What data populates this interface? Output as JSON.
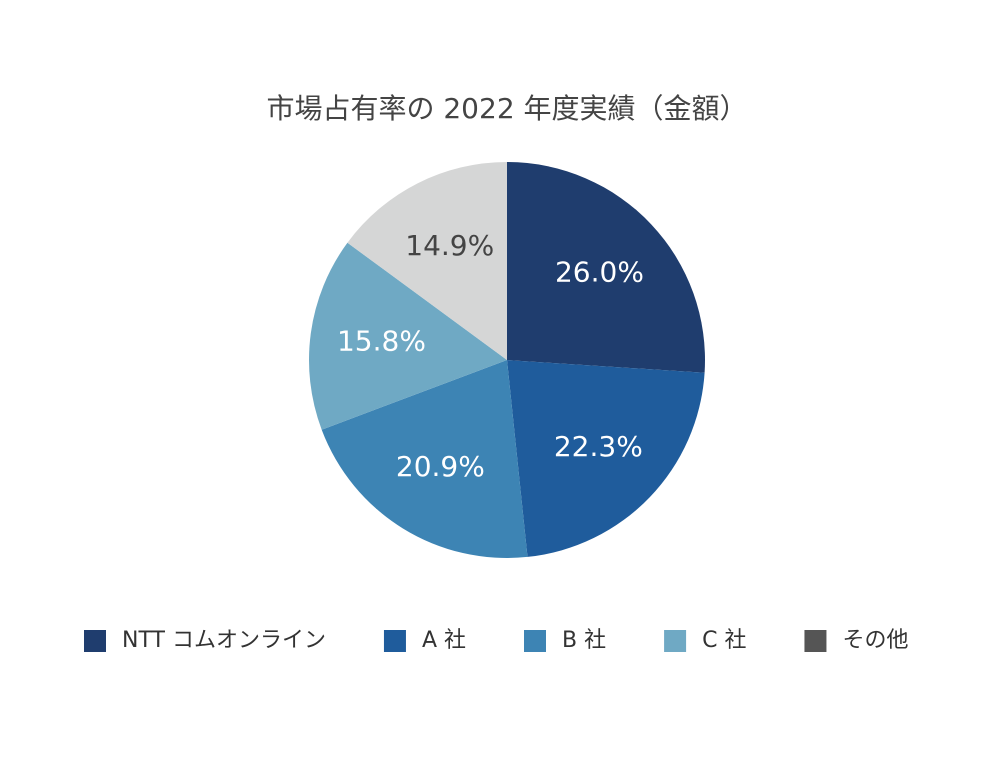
{
  "chart_data": {
    "type": "pie",
    "title": "市場占有率の 2022 年度実績（金額）",
    "categories": [
      "NTT コムオンライン",
      "A 社",
      "B 社",
      "C 社",
      "その他"
    ],
    "values": [
      26.0,
      22.3,
      20.9,
      15.8,
      14.9
    ],
    "value_labels": [
      "26.0%",
      "22.3%",
      "20.9%",
      "15.8%",
      "14.9%"
    ],
    "colors": [
      "#1f3d6e",
      "#1f5c9c",
      "#3d84b4",
      "#6fa9c4",
      "#d5d6d6"
    ],
    "legend_colors": [
      "#1f3d6e",
      "#1f5c9c",
      "#3d84b4",
      "#6fa9c4",
      "#555555"
    ],
    "legend": "bottom"
  }
}
